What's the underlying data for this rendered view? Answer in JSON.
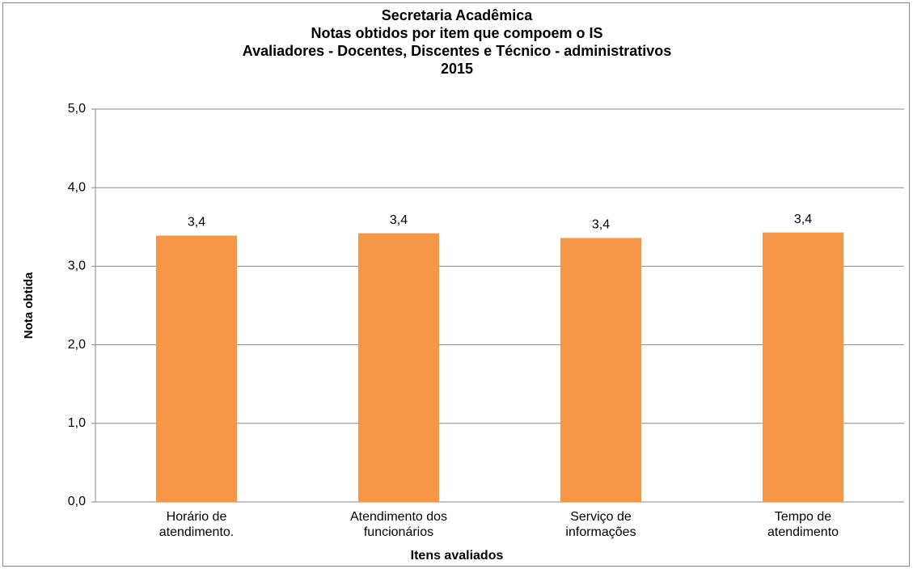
{
  "chart_data": {
    "type": "bar",
    "title": [
      "Secretaria Acadêmica",
      "Notas  obtidos por item que compoem o IS",
      "Avaliadores - Docentes, Discentes e Técnico - administrativos",
      "2015"
    ],
    "x_label": "Itens avaliados",
    "y_label": "Nota obtida",
    "categories": [
      "Horário de atendimento.",
      "Atendimento dos funcionários",
      "Serviço de informações",
      "Tempo de atendimento"
    ],
    "values": [
      3.39,
      3.42,
      3.36,
      3.43
    ],
    "value_labels": [
      "3,4",
      "3,4",
      "3,4",
      "3,4"
    ],
    "color": "#f79646",
    "ylim": [
      0,
      5
    ],
    "yticks": [
      {
        "value": 0,
        "label": "0,0"
      },
      {
        "value": 1,
        "label": "1,0"
      },
      {
        "value": 2,
        "label": "2,0"
      },
      {
        "value": 3,
        "label": "3,0"
      },
      {
        "value": 4,
        "label": "4,0"
      },
      {
        "value": 5,
        "label": "5,0"
      }
    ],
    "grid": true
  }
}
